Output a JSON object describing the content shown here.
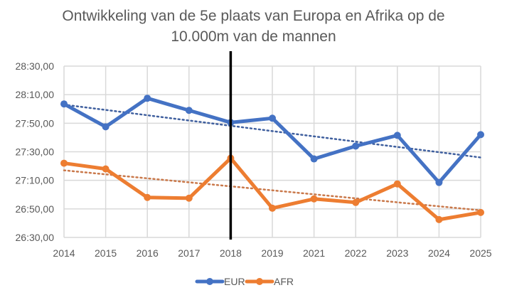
{
  "chart_data": {
    "type": "line",
    "title_lines": [
      "Ontwikkeling van de 5e plaats van Europa en Afrika op de",
      "10.000m van de mannen"
    ],
    "xlabel": "",
    "ylabel": "",
    "categories": [
      "2014",
      "2015",
      "2016",
      "2017",
      "2018",
      "2019",
      "2021",
      "2022",
      "2023",
      "2024",
      "2025"
    ],
    "y_unit": "seconds",
    "ylim": [
      1590,
      1710
    ],
    "y_ticks": [
      {
        "value": 1710,
        "label": "28:30,00"
      },
      {
        "value": 1690,
        "label": "28:10,00"
      },
      {
        "value": 1670,
        "label": "27:50,00"
      },
      {
        "value": 1650,
        "label": "27:30,00"
      },
      {
        "value": 1630,
        "label": "27:10,00"
      },
      {
        "value": 1610,
        "label": "26:50,00"
      },
      {
        "value": 1590,
        "label": "26:30,00"
      }
    ],
    "grid": true,
    "series": [
      {
        "name": "EUR",
        "color": "#4472C4",
        "values": [
          1683.5,
          1667.5,
          1687.5,
          1679,
          1670.5,
          1673.5,
          1645,
          1654,
          1661.5,
          1628.5,
          1662
        ],
        "trendline": {
          "type": "linear",
          "style": "dotted",
          "start": 1683,
          "end": 1646
        }
      },
      {
        "name": "AFR",
        "color": "#ED7D31",
        "values": [
          1642,
          1638,
          1618,
          1617.5,
          1645.5,
          1610.5,
          1617,
          1614.5,
          1627.5,
          1602.5,
          1607.5
        ],
        "trendline": {
          "type": "linear",
          "style": "dotted",
          "start": 1637,
          "end": 1609
        }
      }
    ],
    "annotations": [
      {
        "type": "vertical-line",
        "at": "2018",
        "color": "#000000"
      }
    ],
    "legend": {
      "position": "bottom",
      "entries": [
        "EUR",
        "AFR"
      ]
    }
  }
}
